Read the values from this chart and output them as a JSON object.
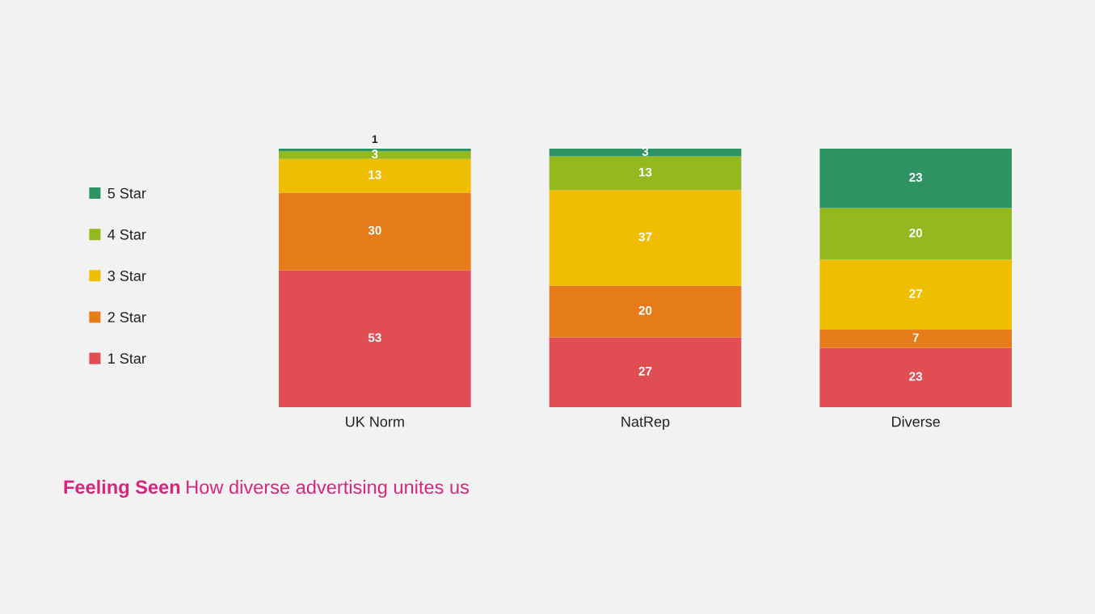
{
  "chart_data": {
    "type": "bar",
    "stacked": true,
    "title": "Feeling Seen",
    "subtitle": "How diverse advertising unites us",
    "categories": [
      "UK Norm",
      "NatRep",
      "Diverse"
    ],
    "series": [
      {
        "name": "1 Star",
        "color": "#e04e53",
        "values": [
          53,
          27,
          23
        ]
      },
      {
        "name": "2 Star",
        "color": "#e57b19",
        "values": [
          30,
          20,
          7
        ]
      },
      {
        "name": "3 Star",
        "color": "#efbe00",
        "values": [
          13,
          37,
          27
        ]
      },
      {
        "name": "4 Star",
        "color": "#93b91f",
        "values": [
          3,
          13,
          20
        ]
      },
      {
        "name": "5 Star",
        "color": "#2e9262",
        "values": [
          1,
          3,
          23
        ]
      }
    ],
    "ylim": [
      0,
      100
    ],
    "data_labels": true,
    "legend": "left",
    "grid": false,
    "tick_labels": "x"
  }
}
